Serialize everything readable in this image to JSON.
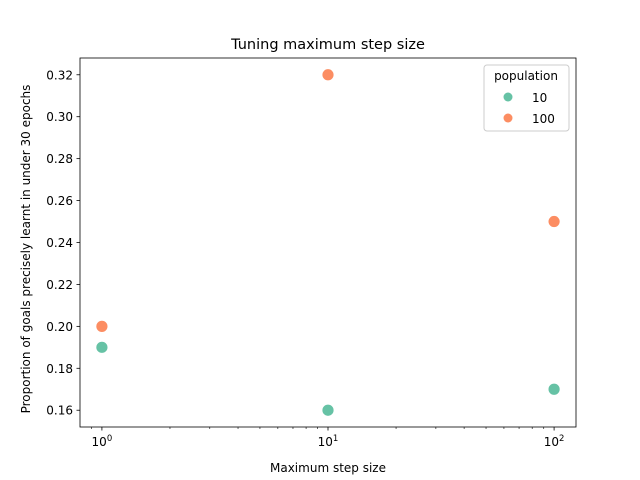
{
  "chart_data": {
    "type": "scatter",
    "title": "Tuning maximum step size",
    "xlabel": "Maximum step size",
    "ylabel": "Proportion of goals precisely learnt in under 30 epochs",
    "xscale": "log",
    "xlim": [
      0.8,
      125
    ],
    "ylim": [
      0.152,
      0.328
    ],
    "x_ticks": [
      {
        "value": 1,
        "base": "10",
        "exp": "0"
      },
      {
        "value": 10,
        "base": "10",
        "exp": "1"
      },
      {
        "value": 100,
        "base": "10",
        "exp": "2"
      }
    ],
    "y_ticks": [
      {
        "value": 0.16,
        "label": "0.16"
      },
      {
        "value": 0.18,
        "label": "0.18"
      },
      {
        "value": 0.2,
        "label": "0.20"
      },
      {
        "value": 0.22,
        "label": "0.22"
      },
      {
        "value": 0.24,
        "label": "0.24"
      },
      {
        "value": 0.26,
        "label": "0.26"
      },
      {
        "value": 0.28,
        "label": "0.28"
      },
      {
        "value": 0.3,
        "label": "0.30"
      },
      {
        "value": 0.32,
        "label": "0.32"
      }
    ],
    "legend": {
      "title": "population",
      "placement": "top-right"
    },
    "series": [
      {
        "name": "10",
        "color": "#66c2a5",
        "x": [
          1,
          10,
          100
        ],
        "y": [
          0.19,
          0.16,
          0.17
        ]
      },
      {
        "name": "100",
        "color": "#fc8d62",
        "x": [
          1,
          10,
          100
        ],
        "y": [
          0.2,
          0.32,
          0.25
        ]
      }
    ],
    "grid": false
  }
}
